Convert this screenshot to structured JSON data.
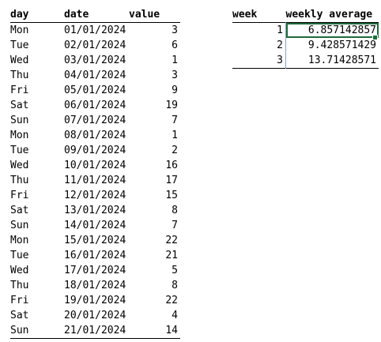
{
  "data_table": {
    "headers": {
      "day": "day",
      "date": "date",
      "value": "value"
    },
    "rows": [
      {
        "day": "Mon",
        "date": "01/01/2024",
        "value": "3"
      },
      {
        "day": "Tue",
        "date": "02/01/2024",
        "value": "6"
      },
      {
        "day": "Wed",
        "date": "03/01/2024",
        "value": "1"
      },
      {
        "day": "Thu",
        "date": "04/01/2024",
        "value": "3"
      },
      {
        "day": "Fri",
        "date": "05/01/2024",
        "value": "9"
      },
      {
        "day": "Sat",
        "date": "06/01/2024",
        "value": "19"
      },
      {
        "day": "Sun",
        "date": "07/01/2024",
        "value": "7"
      },
      {
        "day": "Mon",
        "date": "08/01/2024",
        "value": "1"
      },
      {
        "day": "Tue",
        "date": "09/01/2024",
        "value": "2"
      },
      {
        "day": "Wed",
        "date": "10/01/2024",
        "value": "16"
      },
      {
        "day": "Thu",
        "date": "11/01/2024",
        "value": "17"
      },
      {
        "day": "Fri",
        "date": "12/01/2024",
        "value": "15"
      },
      {
        "day": "Sat",
        "date": "13/01/2024",
        "value": "8"
      },
      {
        "day": "Sun",
        "date": "14/01/2024",
        "value": "7"
      },
      {
        "day": "Mon",
        "date": "15/01/2024",
        "value": "22"
      },
      {
        "day": "Tue",
        "date": "16/01/2024",
        "value": "21"
      },
      {
        "day": "Wed",
        "date": "17/01/2024",
        "value": "5"
      },
      {
        "day": "Thu",
        "date": "18/01/2024",
        "value": "8"
      },
      {
        "day": "Fri",
        "date": "19/01/2024",
        "value": "22"
      },
      {
        "day": "Sat",
        "date": "20/01/2024",
        "value": "4"
      },
      {
        "day": "Sun",
        "date": "21/01/2024",
        "value": "14"
      }
    ]
  },
  "avg_table": {
    "headers": {
      "week": "week",
      "avg": "weekly average"
    },
    "rows": [
      {
        "week": "1",
        "avg": "6.857142857"
      },
      {
        "week": "2",
        "avg": "9.428571429"
      },
      {
        "week": "3",
        "avg": "13.71428571"
      }
    ]
  },
  "colors": {
    "selection": "#1e6b3c",
    "cell_border": "#8aa0c8"
  }
}
